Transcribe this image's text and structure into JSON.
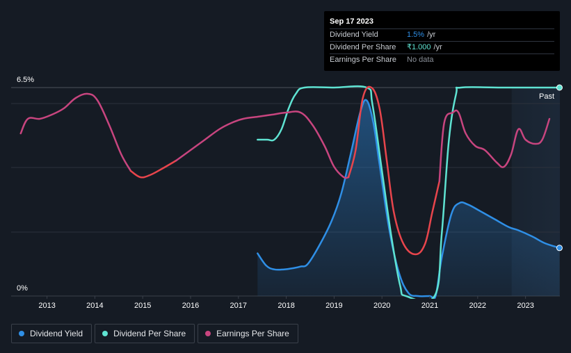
{
  "tooltip": {
    "date": "Sep 17 2023",
    "rows": [
      {
        "label": "Dividend Yield",
        "value": "1.5%",
        "unit": "/yr"
      },
      {
        "label": "Dividend Per Share",
        "value": "₹1.000",
        "unit": "/yr"
      },
      {
        "label": "Earnings Per Share",
        "value": "No data",
        "unit": ""
      }
    ]
  },
  "legend": [
    {
      "label": "Dividend Yield"
    },
    {
      "label": "Dividend Per Share"
    },
    {
      "label": "Earnings Per Share"
    }
  ],
  "colors": {
    "dividend_yield": "#2f8fe6",
    "dividend_per_share": "#5fe3d2",
    "earnings_per_share": "#c8457f",
    "earnings_decline": "#e8454c",
    "background": "#151b24"
  },
  "chart_data": {
    "type": "line",
    "title": "",
    "xlabel": "",
    "ylabel": "",
    "x_ticks": [
      "2013",
      "2014",
      "2015",
      "2016",
      "2017",
      "2018",
      "2019",
      "2020",
      "2021",
      "2022",
      "2023"
    ],
    "y_tick_labels": [
      "6.5%",
      "0%"
    ],
    "ylim": [
      0,
      6.5
    ],
    "y_unit": "%",
    "xlim": [
      2012.25,
      2023.71
    ],
    "past_label": "Past",
    "past_region_start": 2022.71,
    "series": [
      {
        "name": "Dividend Yield",
        "key": "dividend_yield",
        "axis": "percent",
        "filled": true,
        "points": [
          [
            2017.4,
            1.33
          ],
          [
            2017.58,
            0.95
          ],
          [
            2017.75,
            0.83
          ],
          [
            2017.95,
            0.83
          ],
          [
            2018.15,
            0.87
          ],
          [
            2018.3,
            0.92
          ],
          [
            2018.45,
            1.0
          ],
          [
            2018.7,
            1.6
          ],
          [
            2018.95,
            2.35
          ],
          [
            2019.15,
            3.2
          ],
          [
            2019.35,
            4.45
          ],
          [
            2019.55,
            5.75
          ],
          [
            2019.68,
            6.1
          ],
          [
            2019.82,
            5.4
          ],
          [
            2019.95,
            4.1
          ],
          [
            2020.15,
            2.1
          ],
          [
            2020.35,
            0.75
          ],
          [
            2020.55,
            0.1
          ],
          [
            2020.75,
            0.0
          ],
          [
            2021.0,
            0.0
          ],
          [
            2021.12,
            0.0
          ],
          [
            2021.25,
            1.2
          ],
          [
            2021.45,
            2.55
          ],
          [
            2021.62,
            2.9
          ],
          [
            2021.8,
            2.85
          ],
          [
            2022.05,
            2.65
          ],
          [
            2022.35,
            2.4
          ],
          [
            2022.65,
            2.15
          ],
          [
            2022.85,
            2.05
          ],
          [
            2023.15,
            1.85
          ],
          [
            2023.4,
            1.65
          ],
          [
            2023.71,
            1.5
          ]
        ]
      },
      {
        "name": "Dividend Per Share",
        "key": "dividend_per_share",
        "axis": "dps",
        "points": [
          [
            2017.4,
            0.75
          ],
          [
            2017.6,
            0.75
          ],
          [
            2017.75,
            0.75
          ],
          [
            2017.9,
            0.8
          ],
          [
            2018.05,
            0.9
          ],
          [
            2018.2,
            0.97
          ],
          [
            2018.38,
            1.0
          ],
          [
            2019.0,
            1.0
          ],
          [
            2019.68,
            1.0
          ],
          [
            2019.8,
            0.92
          ],
          [
            2020.0,
            0.6
          ],
          [
            2020.2,
            0.28
          ],
          [
            2020.38,
            0.05
          ],
          [
            2020.5,
            0.0
          ],
          [
            2021.1,
            0.0
          ],
          [
            2021.25,
            0.3
          ],
          [
            2021.4,
            0.75
          ],
          [
            2021.55,
            0.97
          ],
          [
            2021.65,
            1.0
          ],
          [
            2022.5,
            1.0
          ],
          [
            2023.71,
            1.0
          ]
        ]
      },
      {
        "name": "Earnings Per Share",
        "key": "earnings_per_share",
        "axis": "eps",
        "segments": [
          {
            "color": "earnings_per_share",
            "points": [
              [
                2012.45,
                0.78
              ],
              [
                2012.6,
                0.85
              ],
              [
                2012.85,
                0.85
              ],
              [
                2013.1,
                0.87
              ],
              [
                2013.35,
                0.9
              ],
              [
                2013.6,
                0.95
              ],
              [
                2013.85,
                0.97
              ],
              [
                2014.05,
                0.94
              ],
              [
                2014.3,
                0.82
              ],
              [
                2014.55,
                0.68
              ],
              [
                2014.75,
                0.6
              ]
            ]
          },
          {
            "color": "earnings_decline",
            "points": [
              [
                2014.75,
                0.6
              ],
              [
                2014.95,
                0.57
              ],
              [
                2015.15,
                0.58
              ],
              [
                2015.4,
                0.61
              ],
              [
                2015.7,
                0.65
              ]
            ]
          },
          {
            "color": "earnings_per_share",
            "points": [
              [
                2015.7,
                0.65
              ],
              [
                2016.0,
                0.7
              ],
              [
                2016.3,
                0.75
              ],
              [
                2016.6,
                0.8
              ],
              [
                2016.85,
                0.83
              ],
              [
                2017.1,
                0.85
              ],
              [
                2017.4,
                0.86
              ],
              [
                2017.7,
                0.87
              ],
              [
                2018.0,
                0.88
              ],
              [
                2018.3,
                0.88
              ],
              [
                2018.55,
                0.82
              ],
              [
                2018.8,
                0.72
              ],
              [
                2019.0,
                0.62
              ],
              [
                2019.2,
                0.57
              ],
              [
                2019.3,
                0.57
              ]
            ]
          },
          {
            "color": "earnings_decline",
            "points": [
              [
                2019.3,
                0.57
              ],
              [
                2019.45,
                0.7
              ],
              [
                2019.6,
                0.95
              ],
              [
                2019.78,
                1.0
              ],
              [
                2019.95,
                0.9
              ],
              [
                2020.1,
                0.65
              ],
              [
                2020.25,
                0.4
              ],
              [
                2020.45,
                0.25
              ],
              [
                2020.7,
                0.2
              ],
              [
                2020.9,
                0.25
              ],
              [
                2021.05,
                0.4
              ],
              [
                2021.2,
                0.55
              ]
            ]
          },
          {
            "color": "earnings_per_share",
            "points": [
              [
                2021.2,
                0.55
              ],
              [
                2021.3,
                0.83
              ],
              [
                2021.48,
                0.88
              ],
              [
                2021.6,
                0.88
              ],
              [
                2021.75,
                0.78
              ],
              [
                2021.95,
                0.72
              ],
              [
                2022.15,
                0.7
              ],
              [
                2022.4,
                0.64
              ],
              [
                2022.55,
                0.62
              ],
              [
                2022.7,
                0.68
              ],
              [
                2022.85,
                0.8
              ],
              [
                2023.0,
                0.75
              ],
              [
                2023.2,
                0.73
              ],
              [
                2023.35,
                0.75
              ],
              [
                2023.5,
                0.85
              ]
            ]
          }
        ]
      }
    ]
  }
}
